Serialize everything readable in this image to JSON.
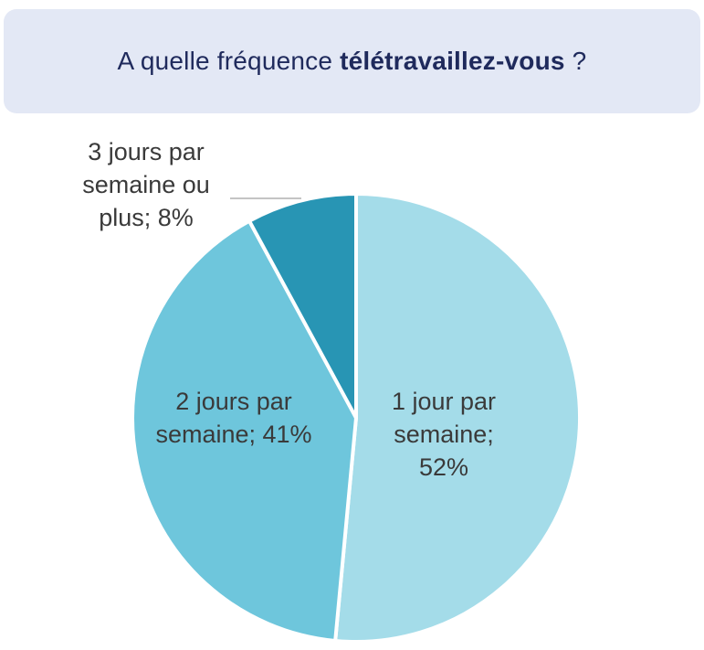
{
  "header": {
    "title_prefix": "A quelle fréquence ",
    "title_emphasis": "télétravaillez-vous",
    "title_suffix": " ?"
  },
  "chart_data": {
    "type": "pie",
    "title": "A quelle fréquence télétravaillez-vous ?",
    "slices": [
      {
        "label": "1 jour par semaine",
        "value": 52,
        "color": "#a4dce9",
        "label_lines": [
          "1 jour par",
          "semaine;",
          "52%"
        ]
      },
      {
        "label": "2 jours par semaine",
        "value": 41,
        "color": "#6ec6dc",
        "label_lines": [
          "2 jours par",
          "semaine; 41%"
        ]
      },
      {
        "label": "3 jours par semaine ou plus",
        "value": 8,
        "color": "#2895b4",
        "label_lines": [
          "3 jours par",
          "semaine ou",
          "plus; 8%"
        ]
      }
    ],
    "start_angle_deg": 0,
    "direction": "clockwise",
    "legend": "none"
  }
}
